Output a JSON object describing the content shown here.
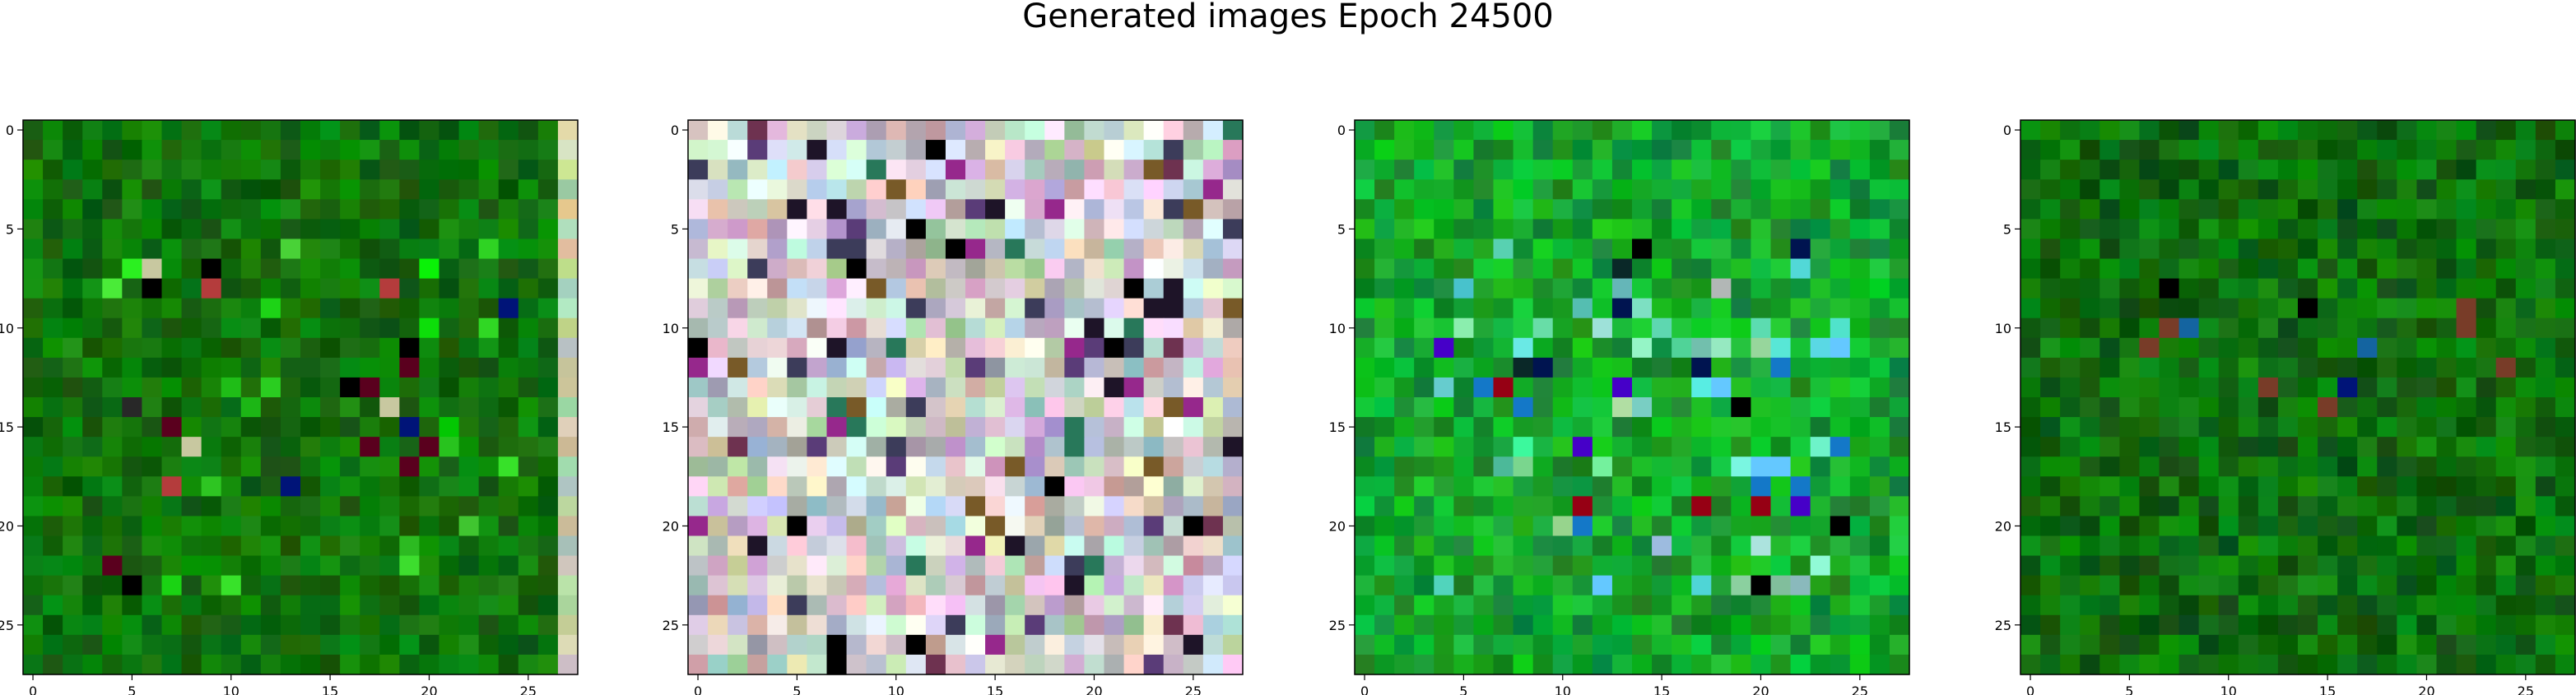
{
  "title": "Generated images Epoch 24500",
  "chart_data": {
    "type": "heatmap",
    "title": "Generated images Epoch 24500",
    "grid": false,
    "panels": [
      {
        "name": "",
        "rows": 28,
        "cols": 28,
        "palette": "green",
        "xticks": [
          "0",
          "5",
          "10",
          "15",
          "20",
          "25"
        ],
        "yticks": [
          "0",
          "5",
          "10",
          "15",
          "20",
          "25"
        ],
        "xlim": [
          -0.5,
          27.5
        ],
        "ylim": [
          27.5,
          -0.5
        ]
      },
      {
        "name": "",
        "rows": 28,
        "cols": 28,
        "palette": "pastel",
        "xticks": [
          "0",
          "5",
          "10",
          "15",
          "20",
          "25"
        ],
        "yticks": [
          "0",
          "5",
          "10",
          "15",
          "20",
          "25"
        ],
        "xlim": [
          -0.5,
          27.5
        ],
        "ylim": [
          27.5,
          -0.5
        ]
      },
      {
        "name": "",
        "rows": 28,
        "cols": 28,
        "palette": "green-vivid",
        "xticks": [
          "0",
          "5",
          "10",
          "15",
          "20",
          "25"
        ],
        "yticks": [
          "0",
          "5",
          "10",
          "15",
          "20",
          "25"
        ],
        "xlim": [
          -0.5,
          27.5
        ],
        "ylim": [
          27.5,
          -0.5
        ]
      },
      {
        "name": "",
        "rows": 28,
        "cols": 28,
        "palette": "green-dark",
        "xticks": [
          "0",
          "5",
          "10",
          "15",
          "20",
          "25"
        ],
        "yticks": [
          "0",
          "5",
          "10",
          "15",
          "20",
          "25"
        ],
        "xlim": [
          -0.5,
          27.5
        ],
        "ylim": [
          27.5,
          -0.5
        ]
      }
    ]
  }
}
